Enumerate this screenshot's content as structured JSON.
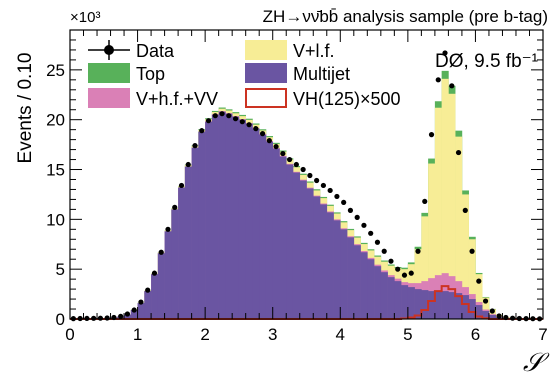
{
  "chart_data": {
    "type": "bar",
    "title": "ZH→νν̄bb̄ analysis sample (pre b-tag)",
    "annotation": "DØ, 9.5 fb⁻¹",
    "ylabel": "Events / 0.10",
    "xlabel": "𝒮",
    "y_multiplier": "×10³",
    "xlim": [
      0,
      7
    ],
    "ylim": [
      0,
      29
    ],
    "x_ticks": [
      "0",
      "1",
      "2",
      "3",
      "4",
      "5",
      "6",
      "7"
    ],
    "y_ticks": [
      "0",
      "5",
      "10",
      "15",
      "20",
      "25"
    ],
    "bin_width": 0.1,
    "x": [
      0.05,
      0.15,
      0.25,
      0.35,
      0.45,
      0.55,
      0.65,
      0.75,
      0.85,
      0.95,
      1.05,
      1.15,
      1.25,
      1.35,
      1.45,
      1.55,
      1.65,
      1.75,
      1.85,
      1.95,
      2.05,
      2.15,
      2.25,
      2.35,
      2.45,
      2.55,
      2.65,
      2.75,
      2.85,
      2.95,
      3.05,
      3.15,
      3.25,
      3.35,
      3.45,
      3.55,
      3.65,
      3.75,
      3.85,
      3.95,
      4.05,
      4.15,
      4.25,
      4.35,
      4.45,
      4.55,
      4.65,
      4.75,
      4.85,
      4.95,
      5.05,
      5.15,
      5.25,
      5.35,
      5.45,
      5.55,
      5.65,
      5.75,
      5.85,
      5.95,
      6.05,
      6.15,
      6.25,
      6.35,
      6.45,
      6.55,
      6.65,
      6.75,
      6.85,
      6.95
    ],
    "legend": [
      {
        "label": "Data",
        "kind": "marker",
        "color": "#000000"
      },
      {
        "label": "V+l.f.",
        "kind": "fill",
        "color": "#f7ed96"
      },
      {
        "label": "Top",
        "kind": "fill",
        "color": "#58b15a"
      },
      {
        "label": "Multijet",
        "kind": "fill",
        "color": "#6a55a2"
      },
      {
        "label": "V+h.f.+VV",
        "kind": "fill",
        "color": "#da80b6"
      },
      {
        "label": "VH(125)×500",
        "kind": "outline",
        "color": "#cc3322"
      }
    ],
    "series": [
      {
        "name": "Multijet",
        "color": "#6a55a2",
        "values": [
          0.05,
          0.05,
          0.06,
          0.07,
          0.08,
          0.1,
          0.15,
          0.25,
          0.45,
          0.9,
          1.6,
          2.8,
          4.5,
          6.6,
          8.8,
          11.0,
          13.2,
          15.3,
          17.2,
          18.8,
          19.8,
          20.5,
          20.8,
          20.6,
          20.3,
          20.0,
          19.6,
          19.1,
          18.5,
          17.8,
          17.1,
          16.3,
          15.5,
          14.7,
          13.9,
          13.1,
          12.3,
          11.5,
          10.7,
          9.9,
          9.0,
          8.2,
          7.4,
          6.7,
          6.0,
          5.3,
          4.7,
          4.2,
          3.8,
          3.4,
          3.2,
          3.0,
          2.9,
          2.8,
          2.8,
          2.8,
          2.7,
          2.6,
          2.4,
          2.0,
          1.4,
          0.8,
          0.4,
          0.2,
          0.1,
          0.08,
          0.06,
          0.05,
          0.04,
          0.03
        ]
      },
      {
        "name": "V+h.f.+VV",
        "color": "#da80b6",
        "values": [
          0,
          0,
          0,
          0,
          0,
          0,
          0,
          0,
          0,
          0,
          0,
          0,
          0,
          0,
          0,
          0,
          0,
          0,
          0,
          0,
          0.05,
          0.05,
          0.06,
          0.06,
          0.06,
          0.06,
          0.06,
          0.06,
          0.06,
          0.06,
          0.06,
          0.07,
          0.07,
          0.07,
          0.08,
          0.08,
          0.08,
          0.09,
          0.09,
          0.1,
          0.1,
          0.1,
          0.11,
          0.12,
          0.13,
          0.15,
          0.17,
          0.2,
          0.25,
          0.3,
          0.4,
          0.6,
          0.9,
          1.3,
          1.6,
          1.8,
          1.6,
          1.2,
          0.8,
          0.5,
          0.3,
          0.15,
          0.08,
          0.04,
          0.02,
          0,
          0,
          0,
          0,
          0
        ]
      },
      {
        "name": "V+l.f.",
        "color": "#f7ed96",
        "values": [
          0,
          0,
          0,
          0,
          0,
          0,
          0,
          0,
          0,
          0.02,
          0.03,
          0.05,
          0.06,
          0.08,
          0.1,
          0.1,
          0.12,
          0.14,
          0.15,
          0.17,
          0.2,
          0.22,
          0.24,
          0.26,
          0.28,
          0.3,
          0.32,
          0.34,
          0.36,
          0.38,
          0.4,
          0.42,
          0.44,
          0.46,
          0.48,
          0.5,
          0.52,
          0.54,
          0.56,
          0.58,
          0.6,
          0.62,
          0.66,
          0.7,
          0.75,
          0.8,
          0.88,
          0.95,
          1.05,
          1.3,
          1.9,
          3.4,
          6.5,
          11.5,
          16.8,
          19.5,
          18.3,
          14.5,
          9.3,
          5.5,
          2.8,
          1.2,
          0.5,
          0.2,
          0.08,
          0.04,
          0.02,
          0,
          0,
          0
        ]
      },
      {
        "name": "Top",
        "color": "#58b15a",
        "values": [
          0,
          0,
          0,
          0,
          0,
          0,
          0,
          0,
          0,
          0,
          0,
          0,
          0,
          0,
          0,
          0.02,
          0.03,
          0.05,
          0.07,
          0.08,
          0.1,
          0.11,
          0.12,
          0.12,
          0.12,
          0.12,
          0.12,
          0.12,
          0.12,
          0.12,
          0.12,
          0.12,
          0.12,
          0.12,
          0.12,
          0.12,
          0.12,
          0.12,
          0.12,
          0.12,
          0.12,
          0.12,
          0.12,
          0.12,
          0.12,
          0.12,
          0.12,
          0.12,
          0.12,
          0.15,
          0.18,
          0.25,
          0.35,
          0.5,
          0.65,
          0.8,
          0.8,
          0.6,
          0.4,
          0.25,
          0.12,
          0.06,
          0.03,
          0.01,
          0,
          0,
          0,
          0,
          0,
          0
        ]
      },
      {
        "name": "VH(125)×500",
        "color": "#cc3322",
        "style": "outline",
        "values": [
          0,
          0,
          0,
          0,
          0,
          0,
          0,
          0,
          0,
          0,
          0,
          0,
          0,
          0,
          0,
          0,
          0,
          0,
          0,
          0,
          0,
          0,
          0,
          0,
          0,
          0,
          0,
          0,
          0,
          0,
          0,
          0,
          0,
          0,
          0,
          0,
          0,
          0,
          0,
          0,
          0,
          0,
          0,
          0,
          0,
          0,
          0,
          0,
          0,
          0.05,
          0.15,
          0.35,
          0.9,
          1.8,
          2.8,
          3.3,
          3.0,
          2.3,
          1.5,
          0.7,
          0.25,
          0.08,
          0,
          0,
          0,
          0,
          0,
          0,
          0,
          0
        ]
      },
      {
        "name": "Data",
        "color": "#000000",
        "style": "points",
        "values": [
          0.04,
          0.05,
          0.06,
          0.07,
          0.08,
          0.1,
          0.15,
          0.27,
          0.5,
          0.9,
          1.7,
          2.9,
          4.6,
          6.7,
          9.0,
          11.2,
          13.4,
          15.5,
          17.4,
          18.9,
          19.9,
          20.4,
          20.6,
          20.4,
          20.1,
          19.8,
          19.5,
          19.1,
          18.6,
          17.9,
          17.3,
          16.6,
          16.0,
          15.5,
          15.0,
          14.4,
          13.9,
          13.4,
          12.9,
          12.3,
          11.7,
          10.9,
          10.2,
          9.4,
          8.6,
          7.7,
          6.8,
          5.8,
          5.0,
          4.4,
          4.6,
          6.8,
          11.8,
          18.5,
          24.0,
          26.7,
          23.4,
          16.7,
          10.9,
          6.8,
          3.8,
          1.8,
          0.8,
          0.3,
          0.15,
          0.08,
          0.05,
          0.04,
          0.03,
          0.02
        ]
      }
    ]
  }
}
